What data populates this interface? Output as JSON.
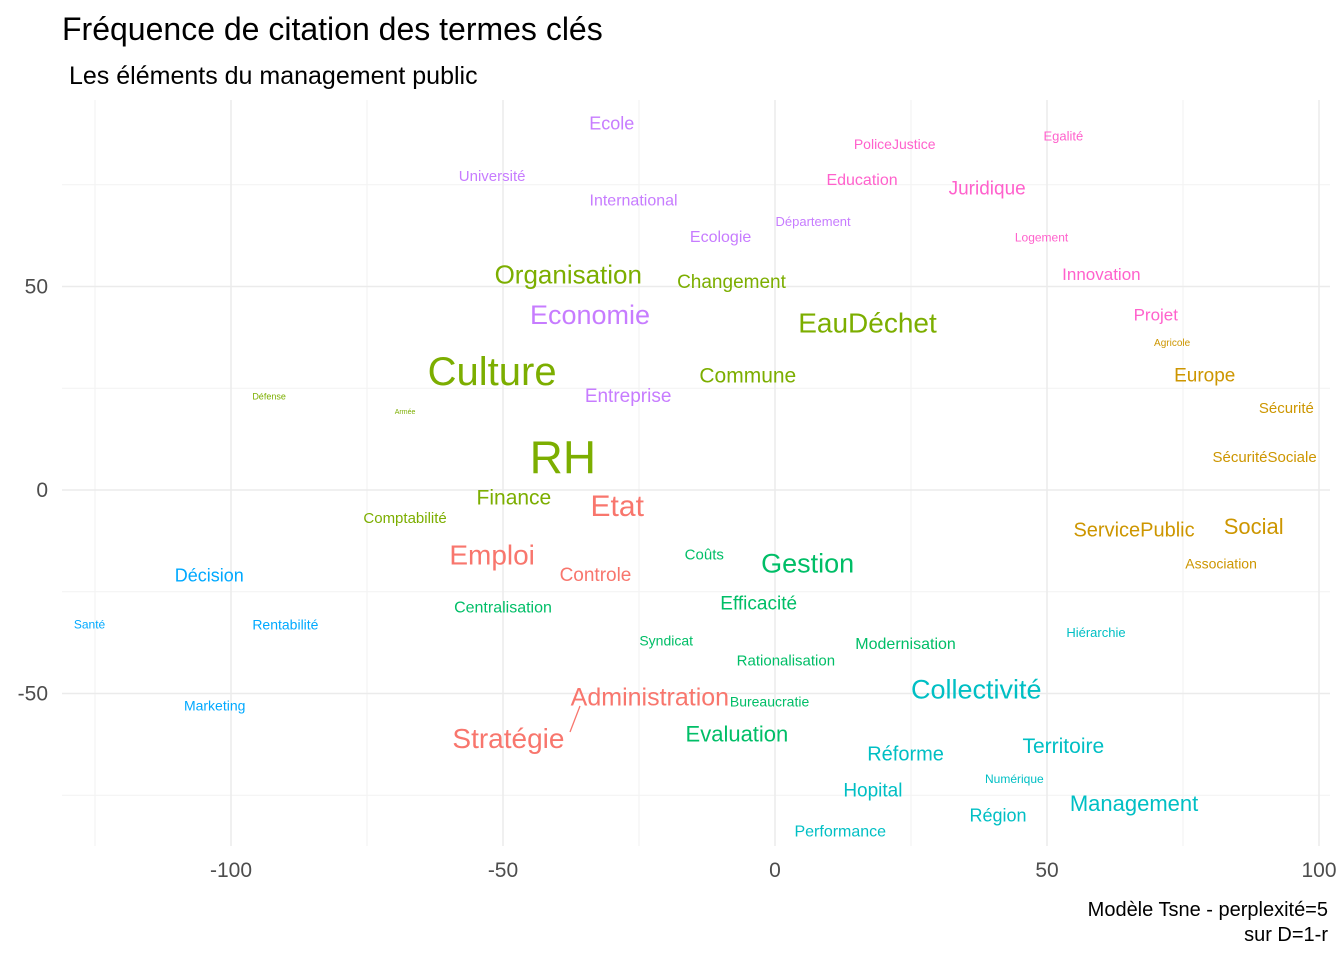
{
  "chart_data": {
    "type": "scatter",
    "title": "Fréquence de citation des termes clés",
    "subtitle": "Les éléments du management public",
    "caption": [
      "Modèle Tsne - perplexité=5",
      "sur D=1-r"
    ],
    "xlabel": "",
    "ylabel": "",
    "xlim": [
      -125,
      100
    ],
    "ylim": [
      -87,
      93
    ],
    "x_ticks": [
      -100,
      -50,
      0,
      50,
      100
    ],
    "y_ticks": [
      -50,
      0,
      50
    ],
    "grid": true,
    "colors": {
      "red": "#F8766D",
      "orange": "#CD9600",
      "olive": "#7CAE00",
      "green": "#00BE67",
      "teal": "#00BFC4",
      "blue": "#00A9FF",
      "purple": "#C77CFF",
      "pink": "#FF61CC"
    },
    "points": [
      {
        "label": "Ecole",
        "x": -30,
        "y": 90,
        "size": 18,
        "color": "purple"
      },
      {
        "label": "PoliceJustice",
        "x": 22,
        "y": 85,
        "size": 14,
        "color": "pink"
      },
      {
        "label": "Egalité",
        "x": 53,
        "y": 87,
        "size": 13,
        "color": "pink"
      },
      {
        "label": "Université",
        "x": -52,
        "y": 77,
        "size": 15,
        "color": "purple"
      },
      {
        "label": "Education",
        "x": 16,
        "y": 76,
        "size": 16,
        "color": "pink"
      },
      {
        "label": "Juridique",
        "x": 39,
        "y": 74,
        "size": 19,
        "color": "pink"
      },
      {
        "label": "International",
        "x": -26,
        "y": 71,
        "size": 16,
        "color": "purple"
      },
      {
        "label": "Département",
        "x": 7,
        "y": 66,
        "size": 13,
        "color": "purple"
      },
      {
        "label": "Ecologie",
        "x": -10,
        "y": 62,
        "size": 16,
        "color": "purple"
      },
      {
        "label": "Logement",
        "x": 49,
        "y": 62,
        "size": 12,
        "color": "pink"
      },
      {
        "label": "Organisation",
        "x": -38,
        "y": 53,
        "size": 26,
        "color": "olive"
      },
      {
        "label": "Changement",
        "x": -8,
        "y": 51,
        "size": 19,
        "color": "olive"
      },
      {
        "label": "Innovation",
        "x": 60,
        "y": 53,
        "size": 17,
        "color": "pink"
      },
      {
        "label": "Economie",
        "x": -34,
        "y": 43,
        "size": 27,
        "color": "purple"
      },
      {
        "label": "EauDéchet",
        "x": 17,
        "y": 41,
        "size": 28,
        "color": "olive"
      },
      {
        "label": "Projet",
        "x": 70,
        "y": 43,
        "size": 17,
        "color": "pink"
      },
      {
        "label": "Agricole",
        "x": 73,
        "y": 36,
        "size": 10,
        "color": "orange"
      },
      {
        "label": "Culture",
        "x": -52,
        "y": 29,
        "size": 40,
        "color": "olive"
      },
      {
        "label": "Commune",
        "x": -5,
        "y": 28,
        "size": 21,
        "color": "olive"
      },
      {
        "label": "Europe",
        "x": 79,
        "y": 28,
        "size": 19,
        "color": "orange"
      },
      {
        "label": "Entreprise",
        "x": -27,
        "y": 23,
        "size": 19,
        "color": "purple"
      },
      {
        "label": "Défense",
        "x": -93,
        "y": 23,
        "size": 9,
        "color": "olive"
      },
      {
        "label": "Armée",
        "x": -68,
        "y": 19,
        "size": 7,
        "color": "olive"
      },
      {
        "label": "Sécurité",
        "x": 94,
        "y": 20,
        "size": 15,
        "color": "orange"
      },
      {
        "label": "RH",
        "x": -39,
        "y": 8,
        "size": 46,
        "color": "olive"
      },
      {
        "label": "SécuritéSociale",
        "x": 90,
        "y": 8,
        "size": 15,
        "color": "orange"
      },
      {
        "label": "Finance",
        "x": -48,
        "y": -2,
        "size": 21,
        "color": "olive"
      },
      {
        "label": "Etat",
        "x": -29,
        "y": -4,
        "size": 30,
        "color": "red"
      },
      {
        "label": "Comptabilité",
        "x": -68,
        "y": -7,
        "size": 15,
        "color": "olive"
      },
      {
        "label": "ServicePublic",
        "x": 66,
        "y": -10,
        "size": 20,
        "color": "orange"
      },
      {
        "label": "Social",
        "x": 88,
        "y": -9,
        "size": 22,
        "color": "orange"
      },
      {
        "label": "Emploi",
        "x": -52,
        "y": -16,
        "size": 28,
        "color": "red"
      },
      {
        "label": "Coûts",
        "x": -13,
        "y": -16,
        "size": 15,
        "color": "green"
      },
      {
        "label": "Gestion",
        "x": 6,
        "y": -18,
        "size": 27,
        "color": "green"
      },
      {
        "label": "Association",
        "x": 82,
        "y": -18,
        "size": 14,
        "color": "orange"
      },
      {
        "label": "Décision",
        "x": -104,
        "y": -21,
        "size": 18,
        "color": "blue"
      },
      {
        "label": "Controle",
        "x": -33,
        "y": -21,
        "size": 19,
        "color": "red"
      },
      {
        "label": "Centralisation",
        "x": -50,
        "y": -29,
        "size": 16,
        "color": "green"
      },
      {
        "label": "Efficacité",
        "x": -3,
        "y": -28,
        "size": 19,
        "color": "green"
      },
      {
        "label": "Santé",
        "x": -126,
        "y": -33,
        "size": 12,
        "color": "blue"
      },
      {
        "label": "Rentabilité",
        "x": -90,
        "y": -33,
        "size": 14,
        "color": "blue"
      },
      {
        "label": "Syndicat",
        "x": -20,
        "y": -37,
        "size": 14,
        "color": "green"
      },
      {
        "label": "Hiérarchie",
        "x": 59,
        "y": -35,
        "size": 13,
        "color": "teal"
      },
      {
        "label": "Modernisation",
        "x": 24,
        "y": -38,
        "size": 16,
        "color": "green"
      },
      {
        "label": "Rationalisation",
        "x": 2,
        "y": -42,
        "size": 15,
        "color": "green"
      },
      {
        "label": "Collectivité",
        "x": 37,
        "y": -49,
        "size": 27,
        "color": "teal"
      },
      {
        "label": "Administration",
        "x": -23,
        "y": -51,
        "size": 25,
        "color": "red"
      },
      {
        "label": "Bureaucratie",
        "x": -1,
        "y": -52,
        "size": 14,
        "color": "green"
      },
      {
        "label": "Marketing",
        "x": -103,
        "y": -53,
        "size": 14,
        "color": "blue"
      },
      {
        "label": "Stratégie",
        "x": -49,
        "y": -61,
        "size": 28,
        "color": "red"
      },
      {
        "label": "Evaluation",
        "x": -7,
        "y": -60,
        "size": 22,
        "color": "green"
      },
      {
        "label": "Territoire",
        "x": 53,
        "y": -63,
        "size": 21,
        "color": "teal"
      },
      {
        "label": "Réforme",
        "x": 24,
        "y": -65,
        "size": 20,
        "color": "teal"
      },
      {
        "label": "Numérique",
        "x": 44,
        "y": -71,
        "size": 12,
        "color": "teal"
      },
      {
        "label": "Hopital",
        "x": 18,
        "y": -74,
        "size": 19,
        "color": "teal"
      },
      {
        "label": "Management",
        "x": 66,
        "y": -77,
        "size": 22,
        "color": "teal"
      },
      {
        "label": "Région",
        "x": 41,
        "y": -80,
        "size": 18,
        "color": "teal"
      },
      {
        "label": "Performance",
        "x": 12,
        "y": -84,
        "size": 16,
        "color": "teal"
      }
    ]
  }
}
